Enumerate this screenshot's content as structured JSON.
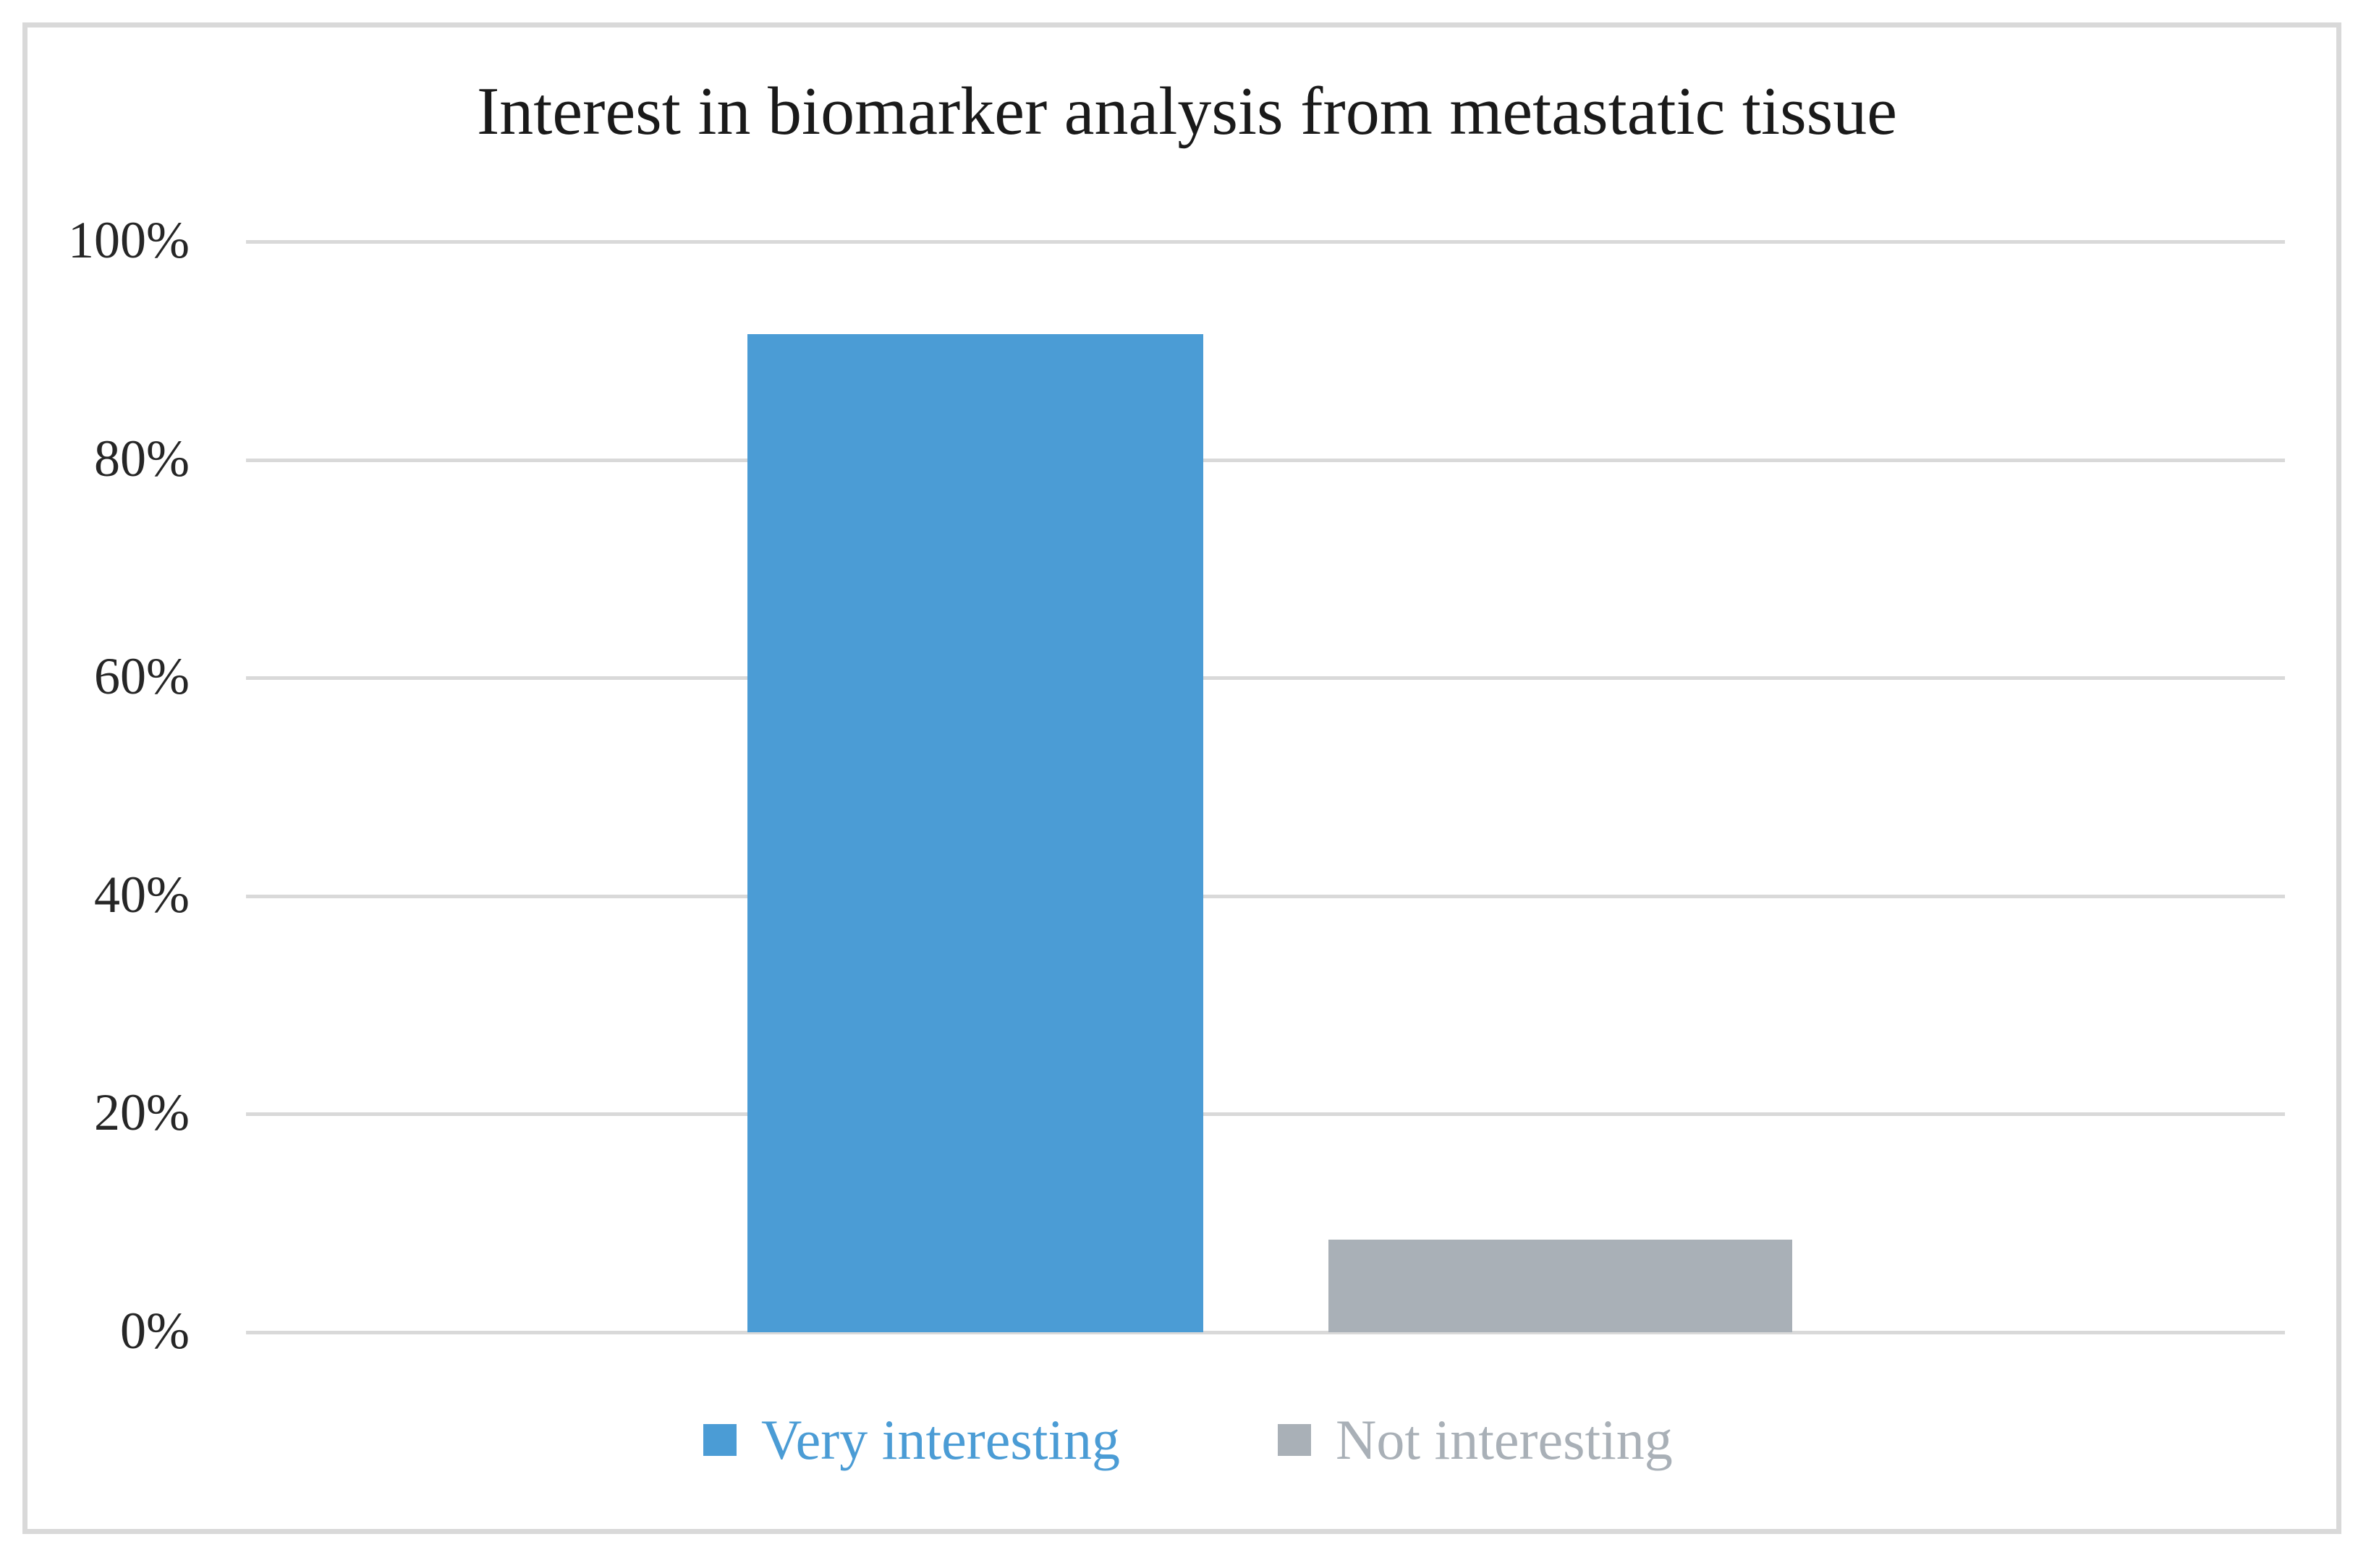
{
  "chart_data": {
    "type": "bar",
    "title": "Interest in biomarker analysis from metastatic tissue",
    "categories": [
      ""
    ],
    "series": [
      {
        "name": "Very interesting",
        "values": [
          91.5
        ],
        "color": "#4B9CD5"
      },
      {
        "name": "Not interesting",
        "values": [
          8.5
        ],
        "color": "#A9B0B7"
      }
    ],
    "xlabel": "",
    "ylabel": "",
    "ylim": [
      0,
      100
    ],
    "yticks": [
      {
        "label": "0%",
        "value": 0
      },
      {
        "label": "20%",
        "value": 20
      },
      {
        "label": "40%",
        "value": 40
      },
      {
        "label": "60%",
        "value": 60
      },
      {
        "label": "80%",
        "value": 80
      },
      {
        "label": "100%",
        "value": 100
      }
    ],
    "grid": true,
    "legend_position": "bottom",
    "colors": {
      "gridline": "#D9D9D9",
      "frame_border": "#D9D9D9",
      "title_text": "#1A1A1A",
      "tick_text": "#262626"
    }
  }
}
